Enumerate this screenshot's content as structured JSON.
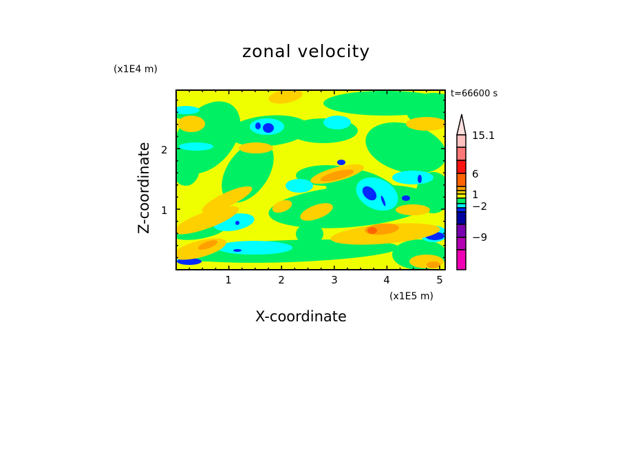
{
  "chart_data": {
    "type": "heatmap",
    "subtype": "filled-contour",
    "title": "zonal velocity",
    "xlabel": "X-coordinate",
    "ylabel": "Z-coordinate",
    "x_unit": "(x1E5 m)",
    "y_unit": "(x1E4 m)",
    "annotation": "t=66600 s",
    "xlim": [
      0,
      5.12
    ],
    "ylim": [
      0,
      2.97
    ],
    "x_ticks": [
      "1",
      "2",
      "3",
      "4",
      "5"
    ],
    "y_ticks": [
      "1",
      "2"
    ],
    "colorbar": {
      "labels": [
        "15.1",
        "6",
        "1",
        "−2",
        "−9"
      ],
      "colors_top_to_bottom": [
        "#ffdede",
        "#ffc0c0",
        "#ff7878",
        "#ff1414",
        "#ff6400",
        "#ffa000",
        "#ffd000",
        "#f0ff00",
        "#00f064",
        "#00ffff",
        "#0028ff",
        "#0000a0",
        "#7800b0",
        "#b400b4",
        "#f000b4"
      ],
      "extend": "max"
    },
    "field_colors": {
      "yellow": "#f0ff00",
      "light_orange": "#ffd000",
      "orange": "#ffa000",
      "dark_orange": "#ff6400",
      "green": "#00f064",
      "cyan": "#00ffff",
      "blue": "#0028ff"
    }
  }
}
